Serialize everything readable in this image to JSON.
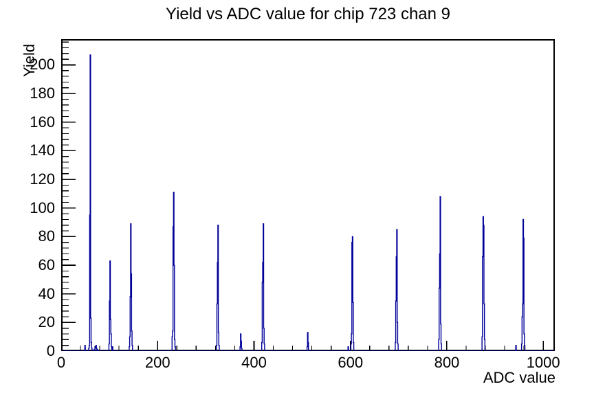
{
  "title": "Yield vs ADC value for chip 723 chan 9",
  "axes": {
    "x_label": "ADC value",
    "y_label": "Yield",
    "x_ticks": [
      0,
      200,
      400,
      600,
      800,
      1000
    ],
    "y_ticks": [
      0,
      20,
      40,
      60,
      80,
      100,
      120,
      140,
      160,
      180,
      200
    ],
    "x_minor_step": 40,
    "y_minor_step": 4,
    "x_range": [
      0,
      1024
    ],
    "y_range": [
      0,
      218
    ]
  },
  "style": {
    "line_color": "#000099",
    "axis_color": "#000000",
    "background": "#ffffff"
  },
  "chart_data": {
    "type": "bar",
    "subtype": "histogram-outline",
    "title": "Yield vs ADC value for chip 723 chan 9",
    "xlabel": "ADC value",
    "ylabel": "Yield",
    "xlim": [
      0,
      1024
    ],
    "ylim": [
      0,
      218
    ],
    "grid": false,
    "legend": false,
    "bin_width": 1,
    "bins": [
      [
        49,
        4
      ],
      [
        57,
        2
      ],
      [
        58,
        4
      ],
      [
        59,
        95
      ],
      [
        60,
        207
      ],
      [
        61,
        23
      ],
      [
        62,
        6
      ],
      [
        63,
        2
      ],
      [
        68,
        1
      ],
      [
        70,
        3
      ],
      [
        71,
        2
      ],
      [
        72,
        4
      ],
      [
        73,
        2
      ],
      [
        75,
        1
      ],
      [
        99,
        5
      ],
      [
        100,
        35
      ],
      [
        101,
        63
      ],
      [
        102,
        22
      ],
      [
        103,
        12
      ],
      [
        104,
        3
      ],
      [
        106,
        3
      ],
      [
        141,
        3
      ],
      [
        142,
        10
      ],
      [
        143,
        38
      ],
      [
        144,
        89
      ],
      [
        145,
        54
      ],
      [
        146,
        14
      ],
      [
        147,
        4
      ],
      [
        230,
        10
      ],
      [
        231,
        14
      ],
      [
        232,
        87
      ],
      [
        233,
        111
      ],
      [
        234,
        60
      ],
      [
        235,
        8
      ],
      [
        236,
        3
      ],
      [
        322,
        4
      ],
      [
        323,
        33
      ],
      [
        324,
        62
      ],
      [
        325,
        88
      ],
      [
        326,
        13
      ],
      [
        327,
        4
      ],
      [
        371,
        3
      ],
      [
        372,
        12
      ],
      [
        373,
        7
      ],
      [
        374,
        2
      ],
      [
        416,
        6
      ],
      [
        417,
        48
      ],
      [
        418,
        62
      ],
      [
        419,
        89
      ],
      [
        420,
        16
      ],
      [
        421,
        5
      ],
      [
        510,
        3
      ],
      [
        511,
        13
      ],
      [
        512,
        6
      ],
      [
        595,
        3
      ],
      [
        601,
        5
      ],
      [
        602,
        12
      ],
      [
        603,
        76
      ],
      [
        604,
        80
      ],
      [
        605,
        34
      ],
      [
        606,
        6
      ],
      [
        693,
        6
      ],
      [
        694,
        35
      ],
      [
        695,
        66
      ],
      [
        696,
        85
      ],
      [
        697,
        20
      ],
      [
        698,
        5
      ],
      [
        783,
        8
      ],
      [
        784,
        44
      ],
      [
        785,
        68
      ],
      [
        786,
        108
      ],
      [
        787,
        19
      ],
      [
        788,
        5
      ],
      [
        873,
        10
      ],
      [
        874,
        66
      ],
      [
        875,
        94
      ],
      [
        876,
        88
      ],
      [
        877,
        33
      ],
      [
        878,
        8
      ],
      [
        943,
        4
      ],
      [
        955,
        5
      ],
      [
        956,
        24
      ],
      [
        957,
        33
      ],
      [
        958,
        92
      ],
      [
        959,
        79
      ],
      [
        960,
        12
      ],
      [
        961,
        4
      ]
    ]
  }
}
